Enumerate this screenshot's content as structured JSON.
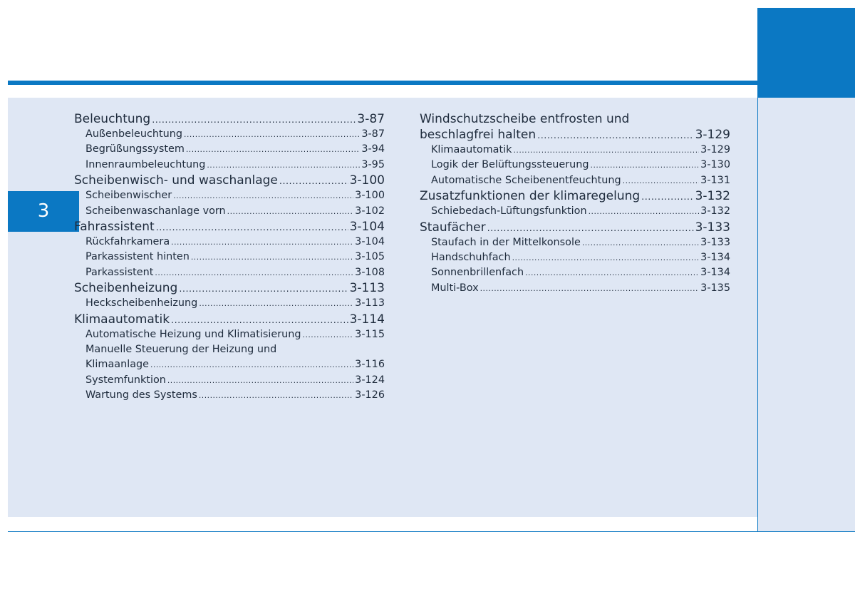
{
  "chapter": "3",
  "left_column": [
    {
      "level": 1,
      "text": "Beleuchtung",
      "page": "3-87"
    },
    {
      "level": 2,
      "text": "Außenbeleuchtung",
      "page": "3-87"
    },
    {
      "level": 2,
      "text": "Begrüßungssystem",
      "page": "3-94"
    },
    {
      "level": 2,
      "text": "Innenraumbeleuchtung",
      "page": "3-95"
    },
    {
      "level": 1,
      "text": "Scheibenwisch- und waschanlage",
      "page": "3-100"
    },
    {
      "level": 2,
      "text": "Scheibenwischer",
      "page": "3-100"
    },
    {
      "level": 2,
      "text": "Scheibenwaschanlage vorn",
      "page": "3-102"
    },
    {
      "level": 1,
      "text": "Fahrassistent",
      "page": "3-104"
    },
    {
      "level": 2,
      "text": "Rückfahrkamera",
      "page": "3-104"
    },
    {
      "level": 2,
      "text": "Parkassistent hinten",
      "page": "3-105"
    },
    {
      "level": 2,
      "text": "Parkassistent",
      "page": "3-108"
    },
    {
      "level": 1,
      "text": "Scheibenheizung",
      "page": "3-113"
    },
    {
      "level": 2,
      "text": "Heckscheibenheizung",
      "page": "3-113"
    },
    {
      "level": 1,
      "text": "Klimaautomatik",
      "page": "3-114"
    },
    {
      "level": 2,
      "text": "Automatische Heizung und Klimatisierung",
      "page": "3-115"
    },
    {
      "level": 2,
      "text": "Manuelle Steuerung der Heizung und",
      "page": ""
    },
    {
      "level": 2,
      "text": "Klimaanlage",
      "page": "3-116"
    },
    {
      "level": 2,
      "text": "Systemfunktion",
      "page": "3-124"
    },
    {
      "level": 2,
      "text": "Wartung des Systems",
      "page": "3-126"
    }
  ],
  "right_column": [
    {
      "level": 1,
      "text": "Windschutzscheibe entfrosten und",
      "page": ""
    },
    {
      "level": 1,
      "text": "beschlagfrei halten",
      "page": "3-129"
    },
    {
      "level": 2,
      "text": "Klimaautomatik",
      "page": "3-129"
    },
    {
      "level": 2,
      "text": "Logik der Belüftungssteuerung",
      "page": "3-130"
    },
    {
      "level": 2,
      "text": "Automatische Scheibenentfeuchtung",
      "page": "3-131"
    },
    {
      "level": 1,
      "text": "Zusatzfunktionen der klimaregelung",
      "page": "3-132"
    },
    {
      "level": 2,
      "text": "Schiebedach-Lüftungsfunktion",
      "page": "3-132"
    },
    {
      "level": 1,
      "text": "Staufächer",
      "page": "3-133"
    },
    {
      "level": 2,
      "text": "Staufach in der Mittelkonsole",
      "page": "3-133"
    },
    {
      "level": 2,
      "text": "Handschuhfach",
      "page": "3-134"
    },
    {
      "level": 2,
      "text": "Sonnenbrillenfach",
      "page": "3-134"
    },
    {
      "level": 2,
      "text": "Multi-Box",
      "page": "3-135"
    }
  ]
}
